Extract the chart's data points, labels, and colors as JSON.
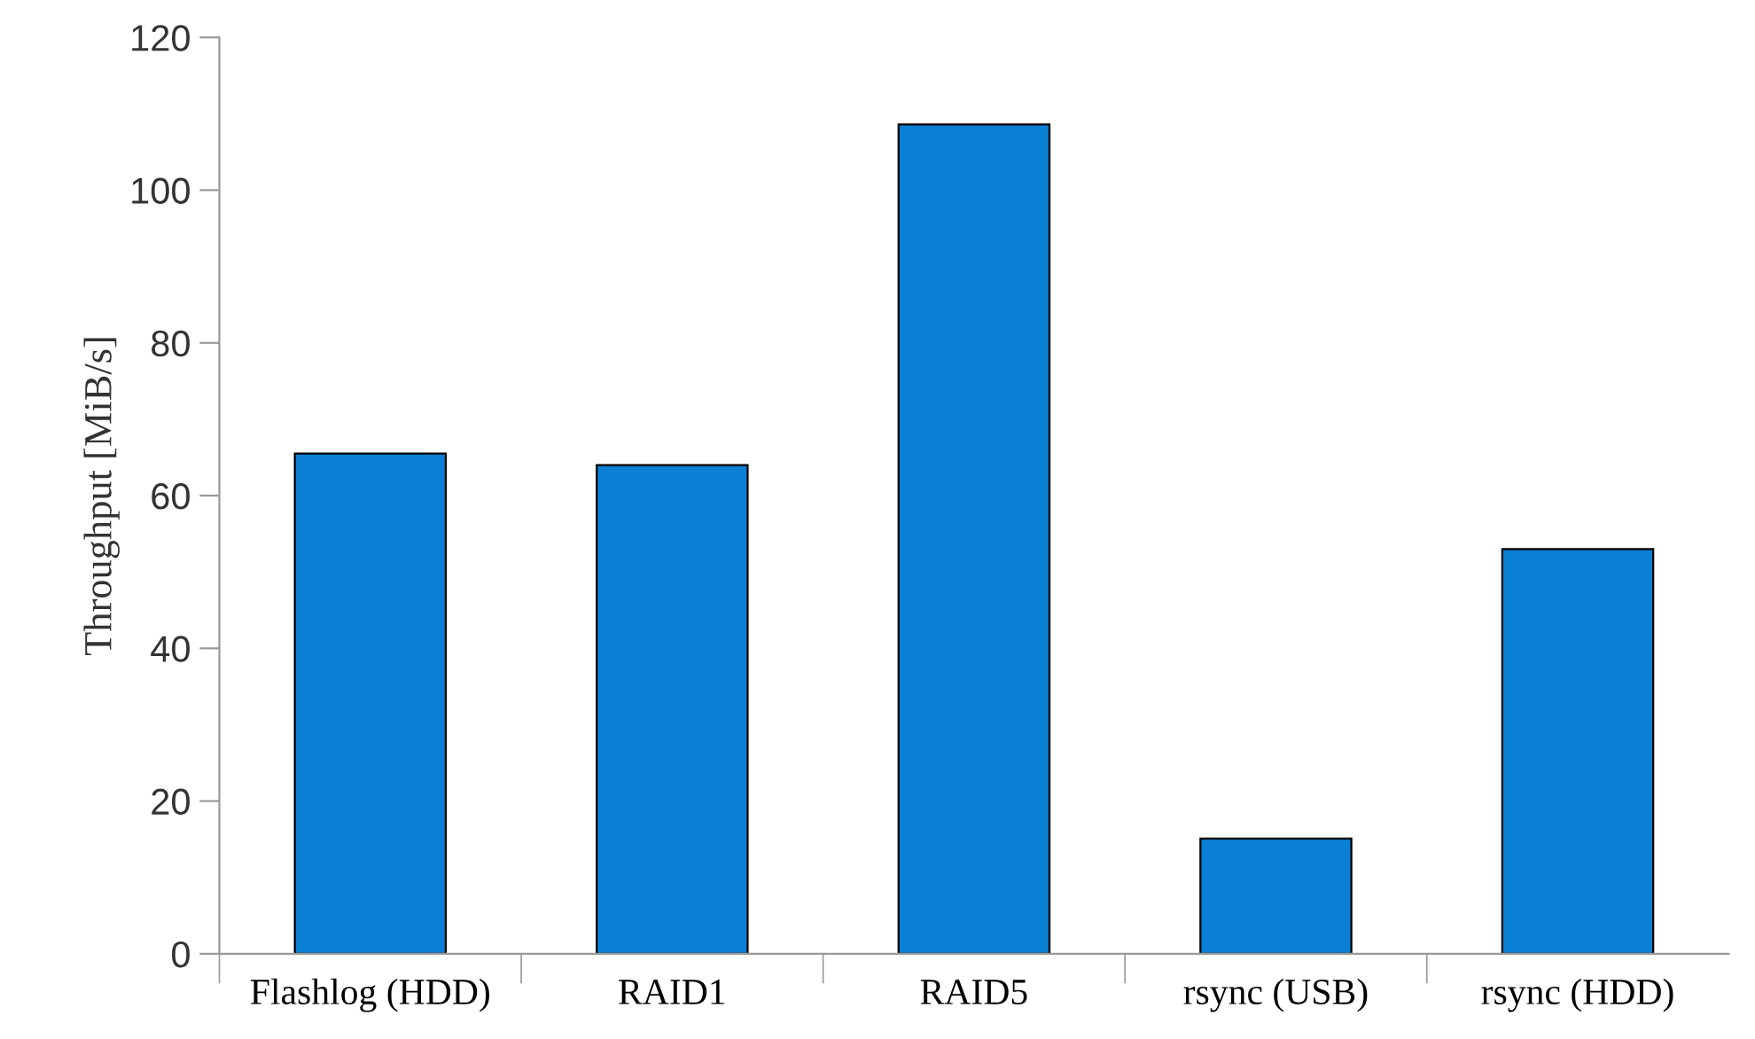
{
  "chart_data": {
    "type": "bar",
    "ylabel": "Throughput [MiB/s]",
    "categories": [
      "Flashlog (HDD)",
      "RAID1",
      "RAID5",
      "rsync (USB)",
      "rsync (HDD)"
    ],
    "values": [
      65.5,
      64.0,
      108.6,
      15.1,
      53.0
    ],
    "color": "#0a7fd4",
    "ylim": [
      0,
      120
    ],
    "yticks": [
      0,
      20,
      40,
      60,
      80,
      100,
      120
    ],
    "grid": false,
    "legend": false
  }
}
